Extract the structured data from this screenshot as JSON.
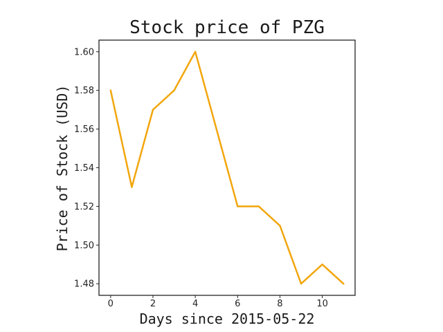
{
  "chart_data": {
    "type": "line",
    "title": "Stock price of PZG",
    "xlabel": "Days since 2015-05-22",
    "ylabel": "Price of Stock (USD)",
    "x": [
      0,
      1,
      2,
      3,
      4,
      5,
      6,
      7,
      8,
      9,
      10,
      11
    ],
    "series": [
      {
        "values": [
          1.58,
          1.53,
          1.57,
          1.58,
          1.6,
          1.56,
          1.52,
          1.52,
          1.51,
          1.48,
          1.49,
          1.48
        ],
        "color": "#f2a60c"
      }
    ],
    "xlim": [
      -0.55,
      11.55
    ],
    "ylim": [
      1.474,
      1.606
    ],
    "xticks": [
      0,
      2,
      4,
      6,
      8,
      10
    ],
    "yticks": [
      1.48,
      1.5,
      1.52,
      1.54,
      1.56,
      1.58,
      1.6
    ],
    "ytick_labels": [
      "1.48",
      "1.50",
      "1.52",
      "1.54",
      "1.56",
      "1.58",
      "1.60"
    ],
    "grid": false,
    "legend": "none"
  }
}
